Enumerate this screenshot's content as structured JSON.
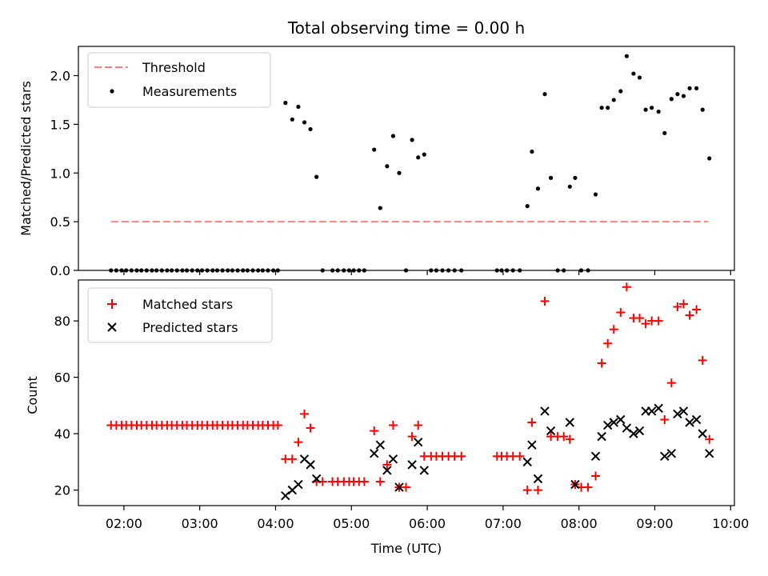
{
  "chart_data": [
    {
      "type": "scatter",
      "title": "Total observing time = 0.00 h",
      "xlabel": "",
      "ylabel": "Matched/Predicted stars",
      "xlim_hours": [
        1.4,
        10.05
      ],
      "ylim": [
        0,
        2.3
      ],
      "yticks": [
        0.0,
        0.5,
        1.0,
        1.5,
        2.0
      ],
      "ytick_labels": [
        "0.0",
        "0.5",
        "1.0",
        "1.5",
        "2.0"
      ],
      "legend_position": "upper-left",
      "series": [
        {
          "name": "Threshold",
          "kind": "line",
          "style": "dashed",
          "color": "#ff7f7f",
          "x": [
            1.83,
            9.7
          ],
          "y": [
            0.5,
            0.5
          ]
        },
        {
          "name": "Measurements",
          "kind": "points",
          "marker": "dot",
          "color": "#000000",
          "x": [
            1.83,
            1.9,
            1.97,
            2.03,
            2.1,
            2.17,
            2.23,
            2.3,
            2.37,
            2.43,
            2.5,
            2.57,
            2.63,
            2.7,
            2.77,
            2.83,
            2.9,
            2.97,
            3.03,
            3.1,
            3.17,
            3.23,
            3.3,
            3.37,
            3.43,
            3.5,
            3.57,
            3.63,
            3.7,
            3.77,
            3.83,
            3.9,
            3.97,
            4.03,
            4.13,
            4.22,
            4.3,
            4.38,
            4.46,
            4.54,
            4.62,
            4.75,
            4.82,
            4.9,
            4.97,
            5.03,
            5.1,
            5.17,
            5.3,
            5.38,
            5.47,
            5.55,
            5.63,
            5.72,
            5.8,
            5.88,
            5.96,
            6.05,
            6.12,
            6.2,
            6.28,
            6.36,
            6.45,
            6.92,
            6.98,
            7.05,
            7.13,
            7.22,
            7.32,
            7.38,
            7.46,
            7.55,
            7.63,
            7.72,
            7.8,
            7.88,
            7.95,
            8.03,
            8.12,
            8.22,
            8.3,
            8.38,
            8.46,
            8.55,
            8.63,
            8.72,
            8.8,
            8.88,
            8.96,
            9.05,
            9.13,
            9.22,
            9.3,
            9.38,
            9.46,
            9.55,
            9.63,
            9.72
          ],
          "y": [
            0,
            0,
            0,
            0,
            0,
            0,
            0,
            0,
            0,
            0,
            0,
            0,
            0,
            0,
            0,
            0,
            0,
            0,
            0,
            0,
            0,
            0,
            0,
            0,
            0,
            0,
            0,
            0,
            0,
            0,
            0,
            0,
            0,
            0,
            1.72,
            1.55,
            1.68,
            1.52,
            1.45,
            0.96,
            0,
            0,
            0,
            0,
            0,
            0,
            0,
            0,
            1.24,
            0.64,
            1.07,
            1.38,
            1.0,
            0,
            1.34,
            1.16,
            1.19,
            0,
            0,
            0,
            0,
            0,
            0,
            0,
            0,
            0,
            0,
            0,
            0.66,
            1.22,
            0.84,
            1.81,
            0.95,
            0,
            0,
            0.86,
            0.95,
            0,
            0,
            0.78,
            1.67,
            1.67,
            1.75,
            1.84,
            2.2,
            2.02,
            1.98,
            1.65,
            1.67,
            1.63,
            1.41,
            1.76,
            1.81,
            1.79,
            1.87,
            1.87,
            1.65,
            1.15
          ]
        }
      ]
    },
    {
      "type": "scatter",
      "title": "",
      "xlabel": "Time (UTC)",
      "ylabel": "Count",
      "xlim_hours": [
        1.4,
        10.05
      ],
      "ylim": [
        14.5,
        94.5
      ],
      "yticks": [
        20,
        40,
        60,
        80
      ],
      "ytick_labels": [
        "20",
        "40",
        "60",
        "80"
      ],
      "xticks_hours": [
        2,
        3,
        4,
        5,
        6,
        7,
        8,
        9,
        10
      ],
      "xtick_labels": [
        "02:00",
        "03:00",
        "04:00",
        "05:00",
        "06:00",
        "07:00",
        "08:00",
        "09:00",
        "10:00"
      ],
      "legend_position": "upper-left",
      "series": [
        {
          "name": "Matched stars",
          "marker": "plus",
          "color": "#ff0000",
          "x": [
            1.83,
            1.9,
            1.97,
            2.03,
            2.1,
            2.17,
            2.23,
            2.3,
            2.37,
            2.43,
            2.5,
            2.57,
            2.63,
            2.7,
            2.77,
            2.83,
            2.9,
            2.97,
            3.03,
            3.1,
            3.17,
            3.23,
            3.3,
            3.37,
            3.43,
            3.5,
            3.57,
            3.63,
            3.7,
            3.77,
            3.83,
            3.9,
            3.97,
            4.03,
            4.13,
            4.22,
            4.3,
            4.38,
            4.46,
            4.54,
            4.62,
            4.75,
            4.82,
            4.9,
            4.97,
            5.03,
            5.1,
            5.17,
            5.3,
            5.38,
            5.47,
            5.55,
            5.63,
            5.72,
            5.8,
            5.88,
            5.96,
            6.05,
            6.12,
            6.2,
            6.28,
            6.36,
            6.45,
            6.92,
            6.98,
            7.05,
            7.13,
            7.22,
            7.32,
            7.38,
            7.46,
            7.55,
            7.63,
            7.72,
            7.8,
            7.88,
            7.95,
            8.03,
            8.12,
            8.22,
            8.3,
            8.38,
            8.46,
            8.55,
            8.63,
            8.72,
            8.8,
            8.88,
            8.96,
            9.05,
            9.13,
            9.22,
            9.3,
            9.38,
            9.46,
            9.55,
            9.63,
            9.72
          ],
          "y": [
            43,
            43,
            43,
            43,
            43,
            43,
            43,
            43,
            43,
            43,
            43,
            43,
            43,
            43,
            43,
            43,
            43,
            43,
            43,
            43,
            43,
            43,
            43,
            43,
            43,
            43,
            43,
            43,
            43,
            43,
            43,
            43,
            43,
            43,
            31,
            31,
            37,
            47,
            42,
            23,
            23,
            23,
            23,
            23,
            23,
            23,
            23,
            23,
            41,
            23,
            29,
            43,
            21,
            21,
            39,
            43,
            32,
            32,
            32,
            32,
            32,
            32,
            32,
            32,
            32,
            32,
            32,
            32,
            20,
            44,
            20,
            87,
            39,
            39,
            39,
            38,
            22,
            21,
            21,
            25,
            65,
            72,
            77,
            83,
            92,
            81,
            81,
            79,
            80,
            80,
            45,
            58,
            85,
            86,
            82,
            84,
            66,
            38
          ]
        },
        {
          "name": "Predicted stars",
          "marker": "x",
          "color": "#000000",
          "x": [
            4.13,
            4.22,
            4.3,
            4.38,
            4.46,
            4.54,
            5.3,
            5.38,
            5.47,
            5.55,
            5.63,
            5.8,
            5.88,
            5.96,
            7.32,
            7.38,
            7.46,
            7.55,
            7.63,
            7.88,
            7.95,
            8.22,
            8.3,
            8.38,
            8.46,
            8.55,
            8.63,
            8.72,
            8.8,
            8.88,
            8.96,
            9.05,
            9.13,
            9.22,
            9.3,
            9.38,
            9.46,
            9.55,
            9.63,
            9.72
          ],
          "y": [
            18,
            20,
            22,
            31,
            29,
            24,
            33,
            36,
            27,
            31,
            21,
            29,
            37,
            27,
            30,
            36,
            24,
            48,
            41,
            44,
            22,
            32,
            39,
            43,
            44,
            45,
            42,
            40,
            41,
            48,
            48,
            49,
            32,
            33,
            47,
            48,
            44,
            45,
            40,
            33
          ]
        }
      ]
    }
  ]
}
